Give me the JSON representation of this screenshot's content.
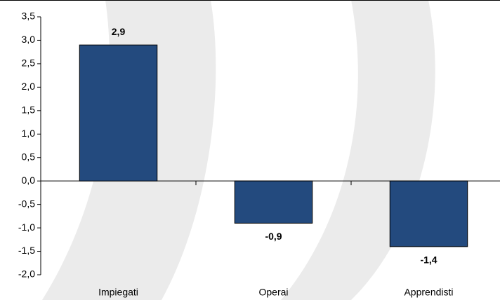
{
  "chart_data": {
    "type": "bar",
    "categories": [
      "Impiegati",
      "Operai",
      "Apprendisti"
    ],
    "values": [
      2.9,
      -0.9,
      -1.4
    ],
    "value_labels": [
      "2,9",
      "-0,9",
      "-1,4"
    ],
    "color": "#234a7e",
    "ylim": [
      -2.0,
      3.5
    ],
    "yticks": [
      {
        "value": -2.0,
        "label": "-2,0"
      },
      {
        "value": -1.5,
        "label": "-1,5"
      },
      {
        "value": -1.0,
        "label": "-1,0"
      },
      {
        "value": -0.5,
        "label": "-0,5"
      },
      {
        "value": 0.0,
        "label": "0,0"
      },
      {
        "value": 0.5,
        "label": "0,5"
      },
      {
        "value": 1.0,
        "label": "1,0"
      },
      {
        "value": 1.5,
        "label": "1,5"
      },
      {
        "value": 2.0,
        "label": "2,0"
      },
      {
        "value": 2.5,
        "label": "2,5"
      },
      {
        "value": 3.0,
        "label": "3,0"
      },
      {
        "value": 3.5,
        "label": "3,5"
      }
    ],
    "grid": false
  }
}
